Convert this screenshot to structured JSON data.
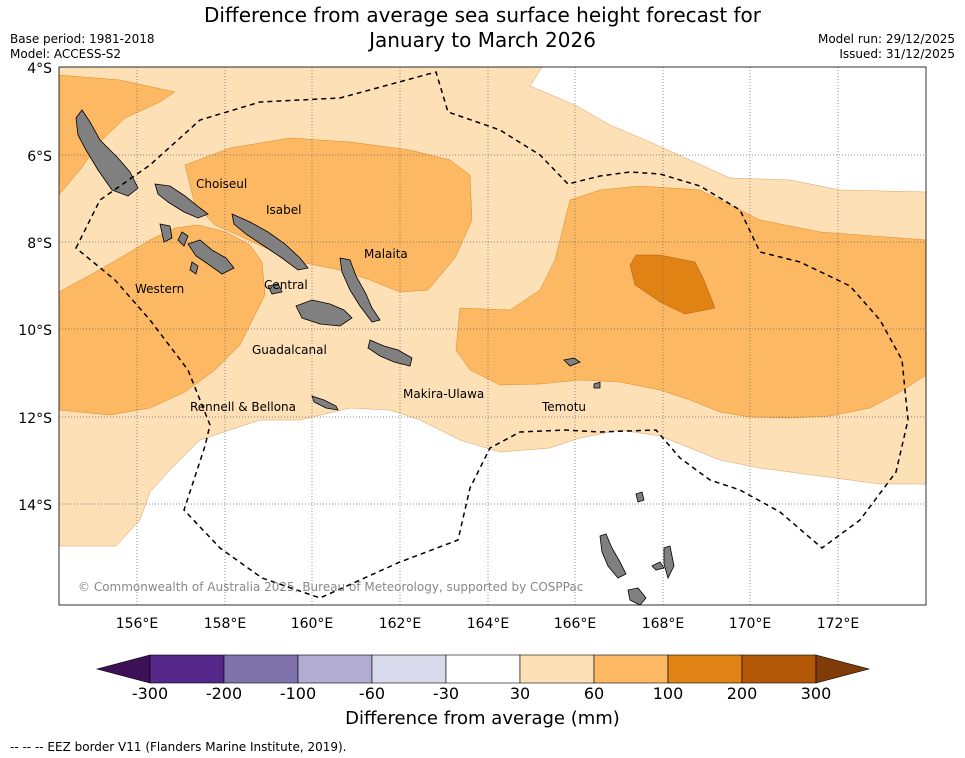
{
  "title": {
    "line1": "Difference from average sea surface height forecast for",
    "line2": "January to March 2026"
  },
  "meta": {
    "base_period": "Base period: 1981-2018",
    "model": "Model: ACCESS-S2",
    "model_run": "Model run: 29/12/2025",
    "issued": "Issued: 31/12/2025"
  },
  "axes": {
    "lat_labels": [
      "4°S",
      "6°S",
      "8°S",
      "10°S",
      "12°S",
      "14°S"
    ],
    "lon_labels": [
      "156°E",
      "158°E",
      "160°E",
      "162°E",
      "164°E",
      "166°E",
      "168°E",
      "170°E",
      "172°E"
    ]
  },
  "regions": {
    "choiseul": "Choiseul",
    "isabel": "Isabel",
    "malaita": "Malaita",
    "western": "Western",
    "central": "Central",
    "guadalcanal": "Guadalcanal",
    "makira": "Makira-Ulawa",
    "rennell": "Rennell & Bellona",
    "temotu": "Temotu"
  },
  "copyright": "© Commonwealth of Australia 2025, Bureau of Meteorology, supported by COSPPac",
  "colorbar": {
    "label": "Difference from average (mm)",
    "ticks": [
      "-300",
      "-200",
      "-100",
      "-60",
      "-30",
      "30",
      "60",
      "100",
      "200",
      "300"
    ],
    "colors": [
      "#3d1058",
      "#542788",
      "#8073ac",
      "#b2abd2",
      "#d8daeb",
      "#ffffff",
      "#fee0b6",
      "#fdb863",
      "#e08214",
      "#b35806",
      "#7f3b08"
    ]
  },
  "legend_note": "-- -- -- EEZ border V11 (Flanders Marine Institute, 2019).",
  "colors": {
    "level1": "#fee0b6",
    "level2": "#fdb863",
    "level3": "#e08214",
    "land": "#808080"
  }
}
